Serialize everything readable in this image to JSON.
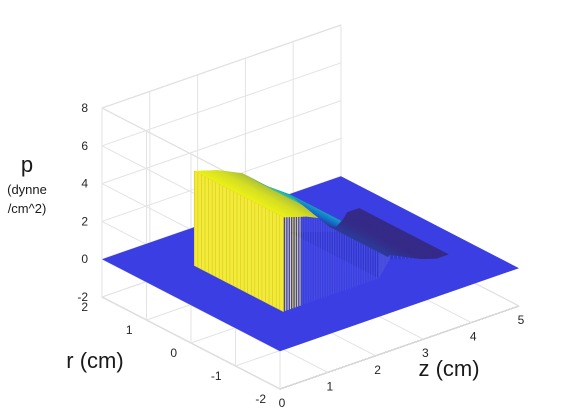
{
  "chart_data": {
    "type": "surface",
    "title": "",
    "xlabel": "z (cm)",
    "ylabel": "r (cm)",
    "zlabel": [
      "p",
      "(dynne",
      "/cm^2)"
    ],
    "x_ticks": [
      "0",
      "1",
      "2",
      "3",
      "4",
      "5"
    ],
    "y_ticks": [
      "2",
      "1",
      "0",
      "-1",
      "-2"
    ],
    "z_ticks": [
      "8",
      "6",
      "4",
      "2",
      "0",
      "-2"
    ],
    "xlim": [
      0,
      5
    ],
    "ylim": [
      -2,
      2
    ],
    "zlim": [
      -2,
      8
    ],
    "grid": true,
    "colormap": "parula",
    "profile_z": [
      0,
      0.5,
      1.0,
      1.5,
      2.0,
      2.5,
      3.0,
      3.5,
      4.0,
      4.5,
      5.0
    ],
    "profile_p": [
      0,
      0,
      5.0,
      4.6,
      4.0,
      2.9,
      2.0,
      0.3,
      0,
      0,
      0
    ],
    "vessel_radius_profile": [
      {
        "z": 1.0,
        "r": 1.0
      },
      {
        "z": 3.0,
        "r": 1.0
      },
      {
        "z": 3.6,
        "r": 0.6
      },
      {
        "z": 4.2,
        "r": 1.0
      }
    ]
  }
}
